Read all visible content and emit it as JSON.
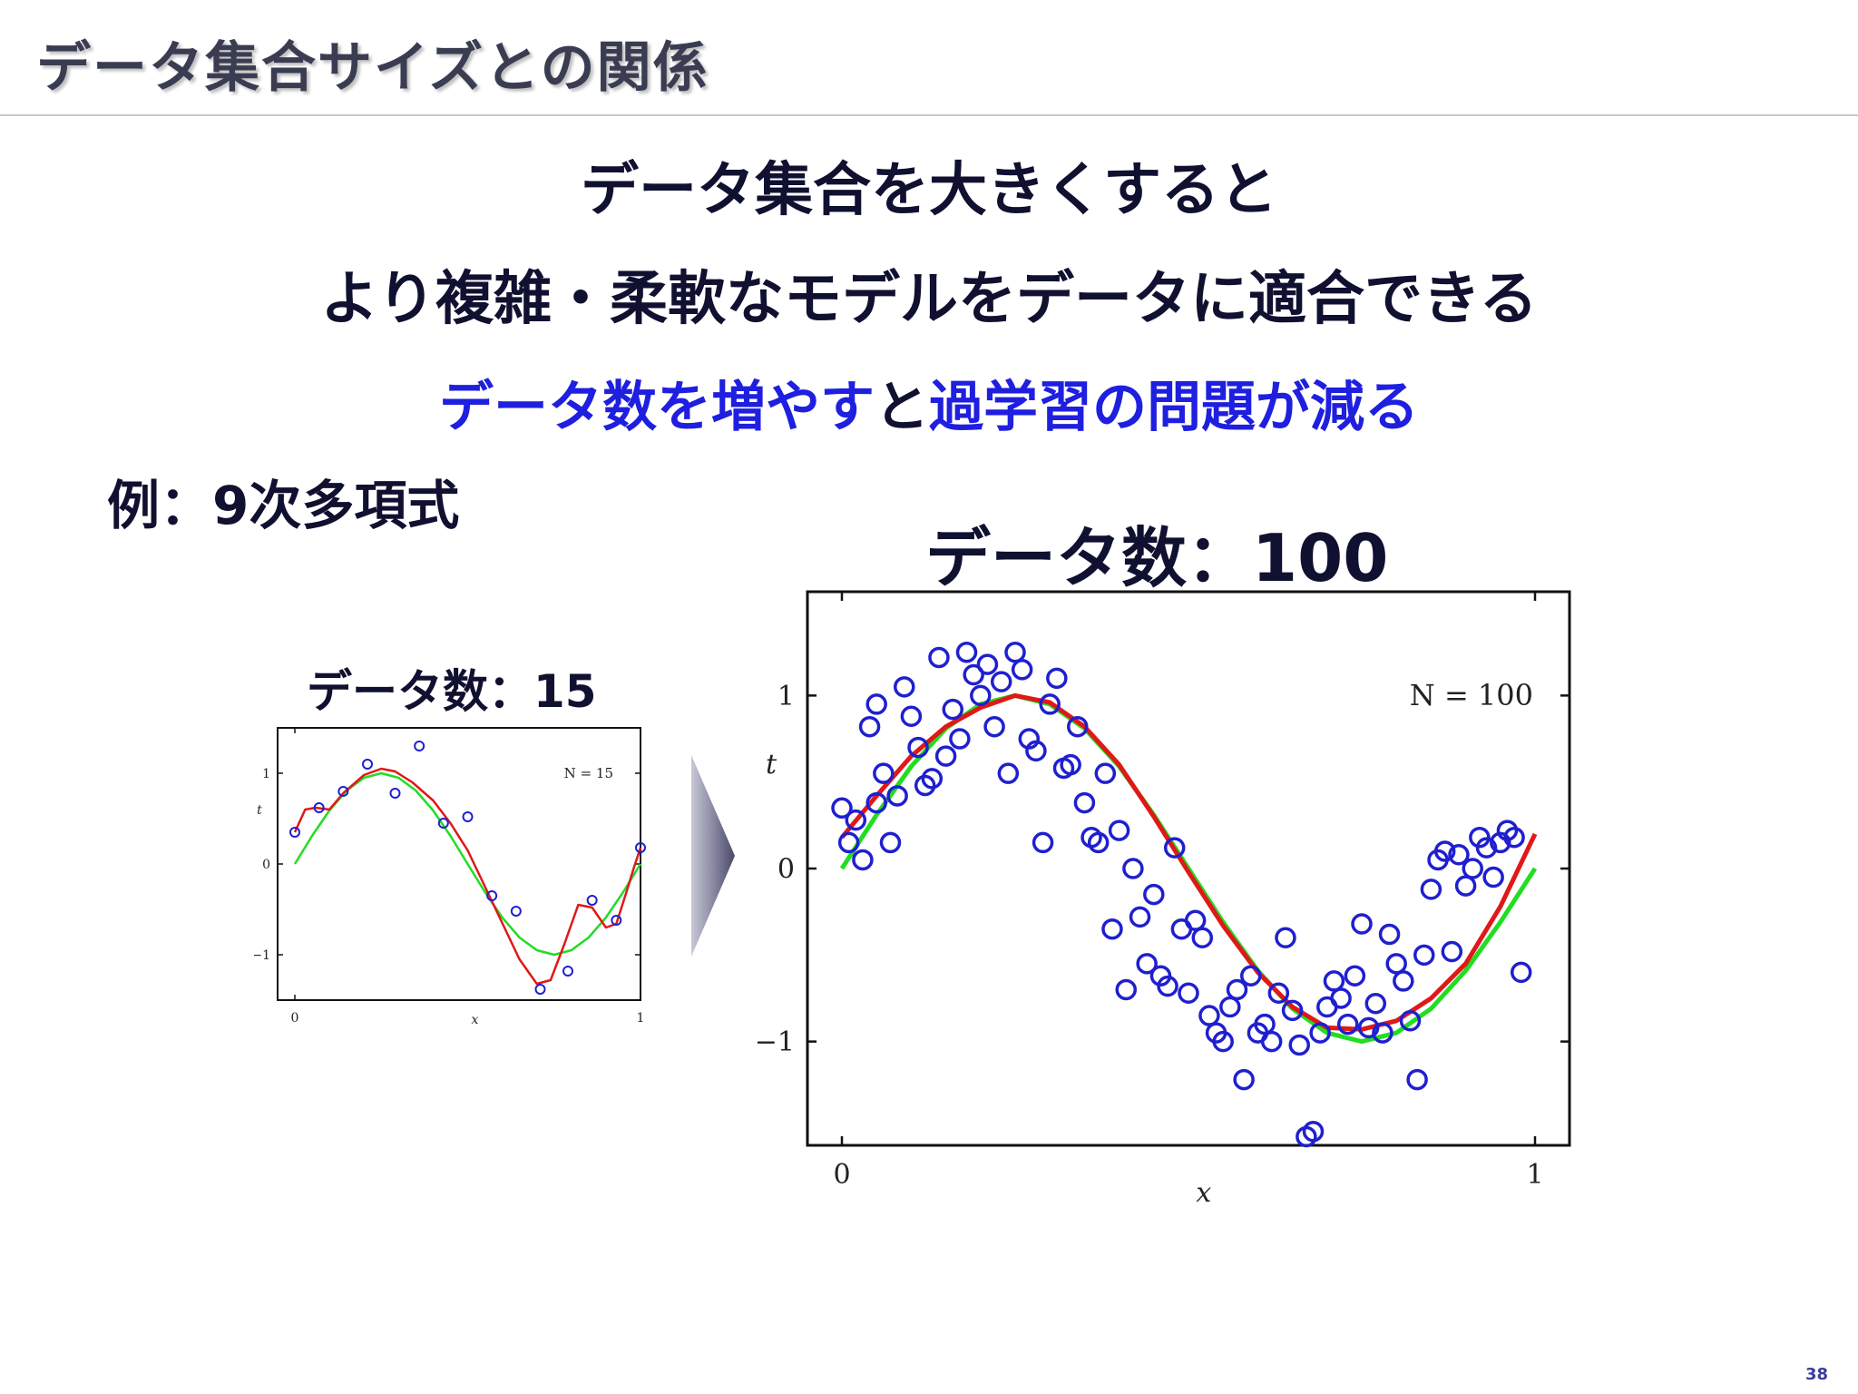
{
  "slide": {
    "title": "データ集合サイズとの関係",
    "headline1": "データ集合を大きくすると",
    "headline2": "より複雑・柔軟なモデルをデータに適合できる",
    "subline": {
      "part1": "データ数を増やす",
      "part2": "と",
      "part3": "過学習の問題が減る"
    },
    "example_label": "例：9次多項式",
    "small_chart_title": "データ数：15",
    "big_chart_title": "データ数：100",
    "page_number": "38"
  },
  "colors": {
    "points": "#1f1fd0",
    "fit_curve": "#e01818",
    "true_curve": "#22dd22",
    "title_text": "#3a3d52",
    "highlight_text": "#1f1fe0",
    "arrow": "#5a5a78"
  },
  "chart_data": [
    {
      "type": "scatter",
      "title": "",
      "annotation": "N = 15",
      "xlabel": "x",
      "ylabel": "t",
      "xlim": [
        0,
        1
      ],
      "ylim": [
        -1.5,
        1.5
      ],
      "xticks": [
        "0",
        "1"
      ],
      "yticks": [
        "−1",
        "0",
        "1"
      ],
      "grid": false,
      "series": [
        {
          "kind": "points",
          "x": [
            0.0,
            0.07,
            0.14,
            0.21,
            0.29,
            0.36,
            0.43,
            0.5,
            0.57,
            0.64,
            0.71,
            0.79,
            0.86,
            0.93,
            1.0
          ],
          "y": [
            0.35,
            0.62,
            0.8,
            1.1,
            0.78,
            1.3,
            0.45,
            0.52,
            -0.35,
            -0.52,
            -1.38,
            -1.18,
            -0.4,
            -0.62,
            0.18
          ]
        },
        {
          "kind": "fit",
          "x": [
            0.0,
            0.03,
            0.06,
            0.1,
            0.14,
            0.2,
            0.25,
            0.29,
            0.34,
            0.4,
            0.45,
            0.5,
            0.55,
            0.6,
            0.65,
            0.7,
            0.74,
            0.78,
            0.82,
            0.86,
            0.9,
            0.93,
            0.96,
            0.98,
            1.0
          ],
          "y": [
            0.35,
            0.6,
            0.62,
            0.6,
            0.78,
            0.98,
            1.05,
            1.02,
            0.9,
            0.7,
            0.45,
            0.15,
            -0.25,
            -0.65,
            -1.05,
            -1.32,
            -1.28,
            -0.88,
            -0.45,
            -0.48,
            -0.7,
            -0.66,
            -0.3,
            -0.05,
            0.18
          ]
        },
        {
          "kind": "true",
          "x": [
            0.0,
            0.05,
            0.1,
            0.15,
            0.2,
            0.25,
            0.3,
            0.35,
            0.4,
            0.45,
            0.5,
            0.55,
            0.6,
            0.65,
            0.7,
            0.75,
            0.8,
            0.85,
            0.9,
            0.95,
            1.0
          ],
          "y": [
            0.0,
            0.31,
            0.59,
            0.81,
            0.95,
            1.0,
            0.95,
            0.81,
            0.59,
            0.31,
            0.0,
            -0.31,
            -0.59,
            -0.81,
            -0.95,
            -1.0,
            -0.95,
            -0.81,
            -0.59,
            -0.31,
            0.0
          ]
        }
      ]
    },
    {
      "type": "scatter",
      "title": "",
      "annotation": "N = 100",
      "xlabel": "x",
      "ylabel": "t",
      "xlim": [
        0,
        1
      ],
      "ylim": [
        -1.6,
        1.6
      ],
      "xticks": [
        "0",
        "1"
      ],
      "yticks": [
        "−1",
        "0",
        "1"
      ],
      "grid": false,
      "series": [
        {
          "kind": "points",
          "x": [
            0.0,
            0.01,
            0.02,
            0.03,
            0.04,
            0.05,
            0.05,
            0.06,
            0.07,
            0.08,
            0.09,
            0.1,
            0.11,
            0.12,
            0.13,
            0.14,
            0.15,
            0.16,
            0.17,
            0.18,
            0.19,
            0.2,
            0.21,
            0.22,
            0.23,
            0.24,
            0.25,
            0.26,
            0.27,
            0.28,
            0.29,
            0.3,
            0.31,
            0.32,
            0.33,
            0.34,
            0.35,
            0.36,
            0.37,
            0.38,
            0.39,
            0.4,
            0.41,
            0.42,
            0.43,
            0.44,
            0.45,
            0.46,
            0.47,
            0.48,
            0.49,
            0.5,
            0.51,
            0.52,
            0.53,
            0.54,
            0.55,
            0.56,
            0.57,
            0.58,
            0.59,
            0.6,
            0.61,
            0.62,
            0.63,
            0.64,
            0.65,
            0.66,
            0.67,
            0.68,
            0.69,
            0.7,
            0.71,
            0.72,
            0.73,
            0.74,
            0.75,
            0.76,
            0.77,
            0.78,
            0.79,
            0.8,
            0.81,
            0.82,
            0.83,
            0.84,
            0.85,
            0.86,
            0.87,
            0.88,
            0.89,
            0.9,
            0.91,
            0.92,
            0.93,
            0.94,
            0.95,
            0.96,
            0.97,
            0.98
          ],
          "y": [
            0.35,
            0.15,
            0.28,
            0.05,
            0.82,
            0.95,
            0.38,
            0.55,
            0.15,
            0.42,
            1.05,
            0.88,
            0.7,
            0.48,
            0.52,
            1.22,
            0.65,
            0.92,
            0.75,
            1.25,
            1.12,
            1.0,
            1.18,
            0.82,
            1.08,
            0.55,
            1.25,
            1.15,
            0.75,
            0.68,
            0.15,
            0.95,
            1.1,
            0.58,
            0.6,
            0.82,
            0.38,
            0.18,
            0.15,
            0.55,
            -0.35,
            0.22,
            -0.7,
            0.0,
            -0.28,
            -0.55,
            -0.15,
            -0.62,
            -0.68,
            0.12,
            -0.35,
            -0.72,
            -0.3,
            -0.4,
            -0.85,
            -0.95,
            -1.0,
            -0.8,
            -0.7,
            -1.22,
            -0.62,
            -0.95,
            -0.9,
            -1.0,
            -0.72,
            -0.4,
            -0.82,
            -1.02,
            -1.55,
            -1.52,
            -0.95,
            -0.8,
            -0.65,
            -0.75,
            -0.9,
            -0.62,
            -0.32,
            -0.92,
            -0.78,
            -0.95,
            -0.38,
            -0.55,
            -0.65,
            -0.88,
            -1.22,
            -0.5,
            -0.12,
            0.05,
            0.1,
            -0.48,
            0.08,
            -0.1,
            0.0,
            0.18,
            0.12,
            -0.05,
            0.15,
            0.22,
            0.18,
            -0.6
          ]
        },
        {
          "kind": "fit",
          "x": [
            0.0,
            0.05,
            0.1,
            0.15,
            0.2,
            0.25,
            0.3,
            0.35,
            0.4,
            0.45,
            0.5,
            0.55,
            0.6,
            0.65,
            0.7,
            0.75,
            0.8,
            0.85,
            0.9,
            0.95,
            1.0
          ],
          "y": [
            0.18,
            0.42,
            0.65,
            0.82,
            0.93,
            1.0,
            0.96,
            0.82,
            0.6,
            0.3,
            -0.02,
            -0.33,
            -0.6,
            -0.8,
            -0.92,
            -0.93,
            -0.88,
            -0.75,
            -0.55,
            -0.22,
            0.2
          ]
        },
        {
          "kind": "true",
          "x": [
            0.0,
            0.05,
            0.1,
            0.15,
            0.2,
            0.25,
            0.3,
            0.35,
            0.4,
            0.45,
            0.5,
            0.55,
            0.6,
            0.65,
            0.7,
            0.75,
            0.8,
            0.85,
            0.9,
            0.95,
            1.0
          ],
          "y": [
            0.0,
            0.31,
            0.59,
            0.81,
            0.95,
            1.0,
            0.95,
            0.81,
            0.59,
            0.31,
            0.0,
            -0.31,
            -0.59,
            -0.81,
            -0.95,
            -1.0,
            -0.95,
            -0.81,
            -0.59,
            -0.31,
            0.0
          ]
        }
      ]
    }
  ]
}
